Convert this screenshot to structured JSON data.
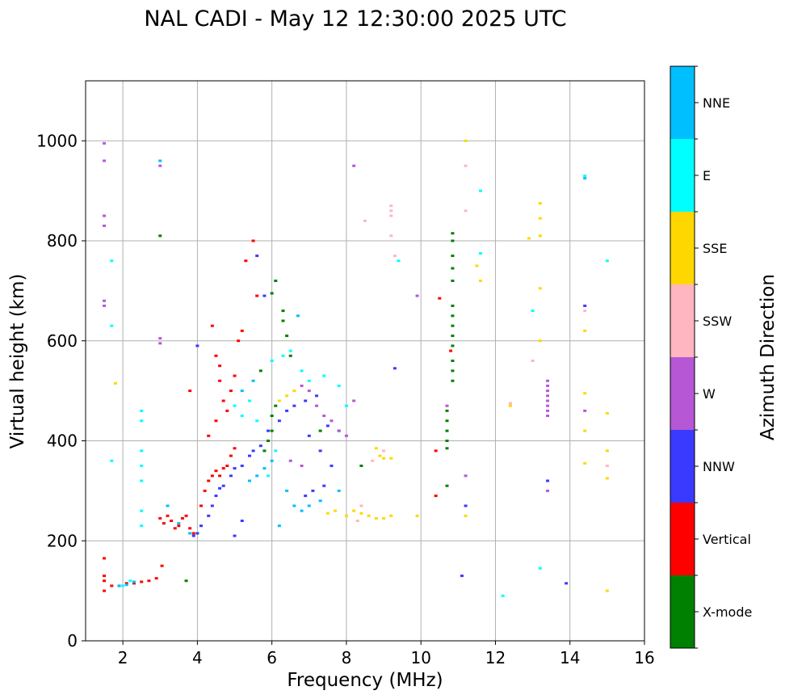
{
  "chart_data": {
    "type": "scatter",
    "title": "NAL CADI - May 12 12:30:00 2025 UTC",
    "xlabel": "Frequency (MHz)",
    "ylabel": "Virtual height (km)",
    "xlim": [
      1,
      16
    ],
    "ylim": [
      0,
      1120
    ],
    "x_ticks": [
      2,
      4,
      6,
      8,
      10,
      12,
      14,
      16
    ],
    "y_ticks": [
      0,
      200,
      400,
      600,
      800,
      1000
    ],
    "grid": true,
    "colorbar": {
      "label": "Azimuth Direction",
      "categories": [
        {
          "name": "X-mode",
          "color": "#008000"
        },
        {
          "name": "Vertical",
          "color": "#ff0000"
        },
        {
          "name": "NNW",
          "color": "#3a3aff"
        },
        {
          "name": "W",
          "color": "#b657d6"
        },
        {
          "name": "SSW",
          "color": "#ffb6c1"
        },
        {
          "name": "SSE",
          "color": "#ffd700"
        },
        {
          "name": "E",
          "color": "#00ffff"
        },
        {
          "name": "NNE",
          "color": "#00bfff"
        }
      ]
    },
    "series": [
      {
        "name": "Vertical",
        "points": [
          [
            1.5,
            165
          ],
          [
            1.5,
            130
          ],
          [
            1.5,
            120
          ],
          [
            1.5,
            100
          ],
          [
            1.7,
            110
          ],
          [
            1.9,
            110
          ],
          [
            2.1,
            115
          ],
          [
            2.3,
            115
          ],
          [
            2.5,
            118
          ],
          [
            2.7,
            120
          ],
          [
            2.9,
            125
          ],
          [
            3.05,
            150
          ],
          [
            3.0,
            245
          ],
          [
            3.1,
            235
          ],
          [
            3.2,
            250
          ],
          [
            3.3,
            240
          ],
          [
            3.4,
            225
          ],
          [
            3.5,
            230
          ],
          [
            3.6,
            245
          ],
          [
            3.7,
            250
          ],
          [
            3.8,
            225
          ],
          [
            3.9,
            215
          ],
          [
            4.1,
            270
          ],
          [
            4.2,
            300
          ],
          [
            4.3,
            320
          ],
          [
            4.4,
            330
          ],
          [
            4.5,
            340
          ],
          [
            4.6,
            330
          ],
          [
            4.7,
            345
          ],
          [
            4.8,
            350
          ],
          [
            4.9,
            370
          ],
          [
            5.0,
            385
          ],
          [
            4.3,
            410
          ],
          [
            4.5,
            440
          ],
          [
            4.7,
            480
          ],
          [
            4.9,
            500
          ],
          [
            5.0,
            530
          ],
          [
            4.6,
            550
          ],
          [
            4.5,
            570
          ],
          [
            4.4,
            630
          ],
          [
            4.6,
            520
          ],
          [
            4.8,
            460
          ],
          [
            5.3,
            760
          ],
          [
            5.5,
            800
          ],
          [
            5.6,
            690
          ],
          [
            5.2,
            620
          ],
          [
            5.1,
            600
          ],
          [
            3.8,
            500
          ],
          [
            10.4,
            380
          ],
          [
            10.4,
            290
          ],
          [
            10.5,
            685
          ],
          [
            10.8,
            580
          ]
        ]
      },
      {
        "name": "NNW",
        "points": [
          [
            3.9,
            210
          ],
          [
            4.0,
            215
          ],
          [
            4.1,
            230
          ],
          [
            4.3,
            250
          ],
          [
            4.4,
            270
          ],
          [
            4.5,
            290
          ],
          [
            4.6,
            305
          ],
          [
            4.7,
            310
          ],
          [
            4.9,
            330
          ],
          [
            5.0,
            345
          ],
          [
            5.2,
            350
          ],
          [
            5.4,
            370
          ],
          [
            5.5,
            380
          ],
          [
            5.7,
            390
          ],
          [
            5.9,
            420
          ],
          [
            6.2,
            440
          ],
          [
            6.4,
            460
          ],
          [
            6.6,
            470
          ],
          [
            6.9,
            480
          ],
          [
            7.2,
            490
          ],
          [
            6.9,
            290
          ],
          [
            7.1,
            300
          ],
          [
            7.4,
            310
          ],
          [
            7.6,
            350
          ],
          [
            7.3,
            380
          ],
          [
            7.0,
            410
          ],
          [
            7.5,
            430
          ],
          [
            7.8,
            420
          ],
          [
            5.0,
            210
          ],
          [
            5.2,
            240
          ],
          [
            4.0,
            590
          ],
          [
            5.6,
            770
          ],
          [
            5.8,
            690
          ],
          [
            9.3,
            545
          ],
          [
            11.2,
            270
          ],
          [
            11.1,
            130
          ],
          [
            13.4,
            320
          ],
          [
            14.4,
            670
          ],
          [
            13.9,
            115
          ]
        ]
      },
      {
        "name": "W",
        "points": [
          [
            1.5,
            995
          ],
          [
            1.5,
            960
          ],
          [
            1.5,
            850
          ],
          [
            1.5,
            830
          ],
          [
            1.5,
            680
          ],
          [
            1.5,
            670
          ],
          [
            3.0,
            605
          ],
          [
            3.0,
            595
          ],
          [
            3.0,
            950
          ],
          [
            6.8,
            510
          ],
          [
            7.0,
            500
          ],
          [
            7.2,
            470
          ],
          [
            7.4,
            450
          ],
          [
            7.6,
            440
          ],
          [
            7.8,
            420
          ],
          [
            8.0,
            410
          ],
          [
            8.2,
            480
          ],
          [
            6.5,
            360
          ],
          [
            6.8,
            350
          ],
          [
            13.4,
            520
          ],
          [
            13.4,
            510
          ],
          [
            13.4,
            500
          ],
          [
            13.4,
            490
          ],
          [
            13.4,
            480
          ],
          [
            13.4,
            470
          ],
          [
            13.4,
            460
          ],
          [
            13.4,
            450
          ],
          [
            13.4,
            300
          ],
          [
            8.2,
            950
          ],
          [
            9.9,
            690
          ],
          [
            14.4,
            460
          ],
          [
            10.7,
            470
          ],
          [
            11.2,
            330
          ]
        ]
      },
      {
        "name": "SSW",
        "points": [
          [
            8.5,
            840
          ],
          [
            9.2,
            870
          ],
          [
            9.2,
            860
          ],
          [
            9.2,
            850
          ],
          [
            9.2,
            810
          ],
          [
            9.3,
            770
          ],
          [
            11.2,
            860
          ],
          [
            11.2,
            950
          ],
          [
            8.4,
            270
          ],
          [
            8.3,
            240
          ],
          [
            8.7,
            360
          ],
          [
            9.0,
            380
          ],
          [
            13.0,
            560
          ],
          [
            14.4,
            660
          ],
          [
            15.0,
            350
          ],
          [
            12.4,
            475
          ]
        ]
      },
      {
        "name": "SSE",
        "points": [
          [
            1.8,
            515
          ],
          [
            8.0,
            250
          ],
          [
            8.2,
            260
          ],
          [
            8.4,
            255
          ],
          [
            8.6,
            250
          ],
          [
            8.8,
            245
          ],
          [
            9.0,
            245
          ],
          [
            9.2,
            250
          ],
          [
            7.5,
            255
          ],
          [
            7.7,
            260
          ],
          [
            8.8,
            385
          ],
          [
            8.9,
            370
          ],
          [
            9.0,
            365
          ],
          [
            9.2,
            365
          ],
          [
            6.2,
            480
          ],
          [
            6.4,
            490
          ],
          [
            6.6,
            500
          ],
          [
            11.5,
            750
          ],
          [
            11.6,
            720
          ],
          [
            11.2,
            1000
          ],
          [
            12.9,
            805
          ],
          [
            13.2,
            875
          ],
          [
            13.2,
            845
          ],
          [
            13.2,
            810
          ],
          [
            13.2,
            705
          ],
          [
            13.2,
            600
          ],
          [
            14.4,
            620
          ],
          [
            14.4,
            495
          ],
          [
            14.4,
            420
          ],
          [
            14.4,
            355
          ],
          [
            15.0,
            455
          ],
          [
            15.0,
            380
          ],
          [
            15.0,
            325
          ],
          [
            15.0,
            100
          ],
          [
            11.2,
            250
          ],
          [
            12.4,
            470
          ],
          [
            9.9,
            250
          ]
        ]
      },
      {
        "name": "E",
        "points": [
          [
            2.5,
            460
          ],
          [
            2.5,
            440
          ],
          [
            2.5,
            380
          ],
          [
            2.5,
            350
          ],
          [
            2.5,
            320
          ],
          [
            2.5,
            260
          ],
          [
            2.5,
            230
          ],
          [
            2.2,
            120
          ],
          [
            2.0,
            110
          ],
          [
            3.0,
            960
          ],
          [
            5.0,
            470
          ],
          [
            5.2,
            450
          ],
          [
            5.4,
            480
          ],
          [
            5.6,
            440
          ],
          [
            6.0,
            560
          ],
          [
            6.3,
            570
          ],
          [
            6.5,
            580
          ],
          [
            6.8,
            540
          ],
          [
            7.0,
            520
          ],
          [
            7.4,
            530
          ],
          [
            7.8,
            510
          ],
          [
            8.0,
            470
          ],
          [
            1.7,
            360
          ],
          [
            1.7,
            760
          ],
          [
            1.7,
            630
          ],
          [
            9.4,
            760
          ],
          [
            11.6,
            900
          ],
          [
            11.6,
            775
          ],
          [
            13.0,
            660
          ],
          [
            13.2,
            145
          ],
          [
            14.4,
            930
          ],
          [
            15.0,
            760
          ],
          [
            12.2,
            90
          ],
          [
            6.1,
            380
          ],
          [
            5.9,
            330
          ]
        ]
      },
      {
        "name": "NNE",
        "points": [
          [
            1.9,
            110
          ],
          [
            2.1,
            112
          ],
          [
            2.3,
            118
          ],
          [
            3.0,
            960
          ],
          [
            3.2,
            270
          ],
          [
            3.5,
            235
          ],
          [
            3.8,
            215
          ],
          [
            5.4,
            320
          ],
          [
            5.6,
            330
          ],
          [
            5.8,
            345
          ],
          [
            6.0,
            360
          ],
          [
            6.2,
            230
          ],
          [
            6.4,
            300
          ],
          [
            6.6,
            270
          ],
          [
            6.8,
            260
          ],
          [
            7.0,
            270
          ],
          [
            7.3,
            280
          ],
          [
            7.8,
            300
          ],
          [
            5.2,
            500
          ],
          [
            5.5,
            520
          ],
          [
            6.7,
            650
          ],
          [
            14.4,
            925
          ]
        ]
      },
      {
        "name": "X-mode",
        "points": [
          [
            3.0,
            810
          ],
          [
            3.7,
            120
          ],
          [
            5.8,
            380
          ],
          [
            5.9,
            400
          ],
          [
            6.0,
            420
          ],
          [
            6.1,
            720
          ],
          [
            6.0,
            695
          ],
          [
            6.3,
            660
          ],
          [
            6.3,
            640
          ],
          [
            6.4,
            610
          ],
          [
            6.5,
            570
          ],
          [
            6.0,
            450
          ],
          [
            5.7,
            540
          ],
          [
            6.1,
            470
          ],
          [
            7.3,
            420
          ],
          [
            8.4,
            350
          ],
          [
            10.7,
            460
          ],
          [
            10.7,
            440
          ],
          [
            10.7,
            420
          ],
          [
            10.7,
            400
          ],
          [
            10.7,
            385
          ],
          [
            10.7,
            310
          ],
          [
            10.85,
            815
          ],
          [
            10.85,
            800
          ],
          [
            10.85,
            770
          ],
          [
            10.85,
            745
          ],
          [
            10.85,
            720
          ],
          [
            10.85,
            670
          ],
          [
            10.85,
            650
          ],
          [
            10.85,
            630
          ],
          [
            10.85,
            610
          ],
          [
            10.85,
            590
          ],
          [
            10.85,
            560
          ],
          [
            10.85,
            540
          ],
          [
            10.85,
            520
          ]
        ]
      }
    ]
  }
}
